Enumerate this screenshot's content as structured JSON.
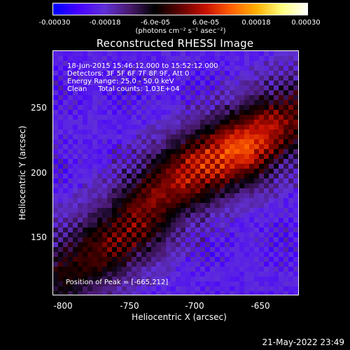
{
  "colorbar": {
    "ticks": [
      "-0.00030",
      "-0.00018",
      "-6.0e-05",
      "6.0e-05",
      "0.00018",
      "0.00030"
    ],
    "unit_label": "(photons cm⁻² s⁻¹ asec⁻²)",
    "colors": [
      "#0000ff",
      "#4800ff",
      "#6030d8",
      "#4a1a70",
      "#000000",
      "#600000",
      "#c81000",
      "#ff6000",
      "#ffb000",
      "#ffff80",
      "#ffffff"
    ]
  },
  "annotations": {
    "time_range": "18-Jun-2015 15:46:12.000 to 15:52:12.000",
    "detectors": "Detectors: 3F 5F 6F 7F 8F 9F, Att 0",
    "energy_range": "Energy Range: 25.0 - 50.0 keV",
    "method_counts": "Clean     Total counts: 1.03E+04",
    "peak": "Position of Peak = [-665,212]"
  },
  "footer": {
    "timestamp": "21-May-2022 23:49"
  },
  "chart_data": {
    "type": "heatmap",
    "title": "Reconstructed RHESSI Image",
    "xlabel": "Heliocentric X (arcsec)",
    "ylabel": "Heliocentric Y (arcsec)",
    "xlim": [
      -808,
      -622
    ],
    "ylim": [
      100,
      285
    ],
    "xticks": [
      -800,
      -750,
      -700,
      -650
    ],
    "yticks": [
      150,
      200,
      250
    ],
    "color_range": [
      -0.0003,
      0.0003
    ],
    "peak_position": [
      -665,
      212
    ],
    "ridge": [
      {
        "x": -808,
        "y": 110,
        "value": 0.00012
      },
      {
        "x": -780,
        "y": 128,
        "value": 0.00016
      },
      {
        "x": -750,
        "y": 150,
        "value": 0.00018
      },
      {
        "x": -725,
        "y": 178,
        "value": 0.0002
      },
      {
        "x": -700,
        "y": 195,
        "value": 0.00024
      },
      {
        "x": -665,
        "y": 212,
        "value": 0.00029
      },
      {
        "x": -640,
        "y": 228,
        "value": 0.00022
      },
      {
        "x": -622,
        "y": 238,
        "value": 0.00016
      }
    ]
  }
}
